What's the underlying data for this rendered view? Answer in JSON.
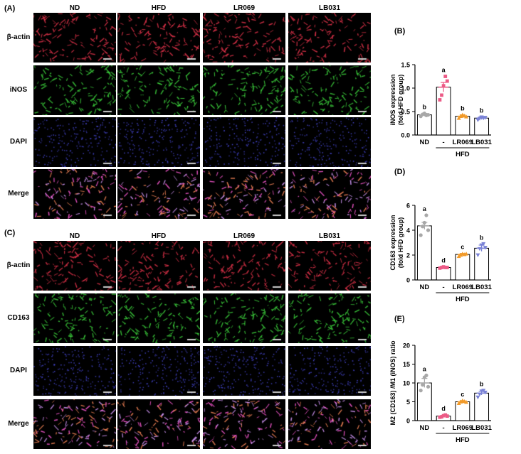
{
  "image_panels": [
    {
      "label": "(A)",
      "columns": [
        "ND",
        "HFD",
        "LR069",
        "LB031"
      ],
      "rows": [
        "β-actin",
        "iNOS",
        "DAPI",
        "Merge"
      ],
      "stain_colors": [
        "#e0334a",
        "#3ccf3c",
        "#4d4ee6",
        "#e070d0"
      ]
    },
    {
      "label": "(C)",
      "columns": [
        "ND",
        "HFD",
        "LR069",
        "LB031"
      ],
      "rows": [
        "β-actin",
        "CD163",
        "DAPI",
        "Merge"
      ],
      "stain_colors": [
        "#e0334a",
        "#3ccf3c",
        "#4d4ee6",
        "#e070d0"
      ]
    }
  ],
  "chart_data": [
    {
      "label": "(B)",
      "type": "bar",
      "ylabel": "iNOS expression\n(fold HFD group)",
      "ylim": [
        0,
        1.5
      ],
      "yticks": [
        "0.0",
        "0.5",
        "1.0",
        "1.5"
      ],
      "categories": [
        "ND",
        "-",
        "LR069",
        "LB031"
      ],
      "group_label": "HFD",
      "values": [
        0.43,
        1.02,
        0.4,
        0.36
      ],
      "errors": [
        0.03,
        0.1,
        0.03,
        0.03
      ],
      "letters": [
        "b",
        "a",
        "b",
        "b"
      ],
      "point_colors": [
        "#a8a8a8",
        "#ec5a86",
        "#f19a2a",
        "#7a82d6"
      ],
      "points": [
        [
          0.4,
          0.44,
          0.46,
          0.42,
          0.43
        ],
        [
          0.75,
          0.85,
          1.05,
          1.25,
          1.15
        ],
        [
          0.36,
          0.4,
          0.43,
          0.41,
          0.39
        ],
        [
          0.32,
          0.35,
          0.38,
          0.36,
          0.37
        ]
      ]
    },
    {
      "label": "(D)",
      "type": "bar",
      "ylabel": "CD163 expression\n(fold HFD group)",
      "ylim": [
        0,
        6
      ],
      "yticks": [
        "0",
        "2",
        "4",
        "6"
      ],
      "categories": [
        "ND",
        "-",
        "LR069",
        "LB031"
      ],
      "group_label": "HFD",
      "values": [
        4.35,
        1.0,
        2.05,
        2.55
      ],
      "errors": [
        0.28,
        0.05,
        0.08,
        0.25
      ],
      "letters": [
        "a",
        "d",
        "c",
        "b"
      ],
      "point_colors": [
        "#a8a8a8",
        "#ec5a86",
        "#f19a2a",
        "#7a82d6"
      ],
      "points": [
        [
          3.6,
          4.3,
          4.6,
          5.2,
          4.0
        ],
        [
          0.95,
          1.0,
          1.05,
          1.0,
          1.0
        ],
        [
          1.9,
          2.0,
          2.1,
          2.05,
          2.1
        ],
        [
          2.0,
          2.5,
          2.8,
          2.9,
          2.6
        ]
      ]
    },
    {
      "label": "(E)",
      "type": "bar",
      "ylabel": "M2 (CD163) /M1 (iNOS) ratio",
      "ylim": [
        0,
        20
      ],
      "yticks": [
        "0",
        "5",
        "10",
        "15",
        "20"
      ],
      "categories": [
        "ND",
        "-",
        "LR069",
        "LB031"
      ],
      "group_label": "HFD",
      "values": [
        10.0,
        1.2,
        5.0,
        7.3
      ],
      "errors": [
        1.2,
        0.2,
        0.3,
        0.5
      ],
      "letters": [
        "a",
        "d",
        "c",
        "b"
      ],
      "point_colors": [
        "#a8a8a8",
        "#ec5a86",
        "#f19a2a",
        "#7a82d6"
      ],
      "points": [
        [
          8.0,
          9.5,
          11.5,
          12.0,
          9.0
        ],
        [
          0.9,
          1.0,
          1.3,
          1.5,
          1.2
        ],
        [
          4.6,
          5.0,
          5.3,
          5.1,
          4.9
        ],
        [
          6.2,
          7.0,
          7.8,
          8.0,
          7.5
        ]
      ]
    }
  ]
}
